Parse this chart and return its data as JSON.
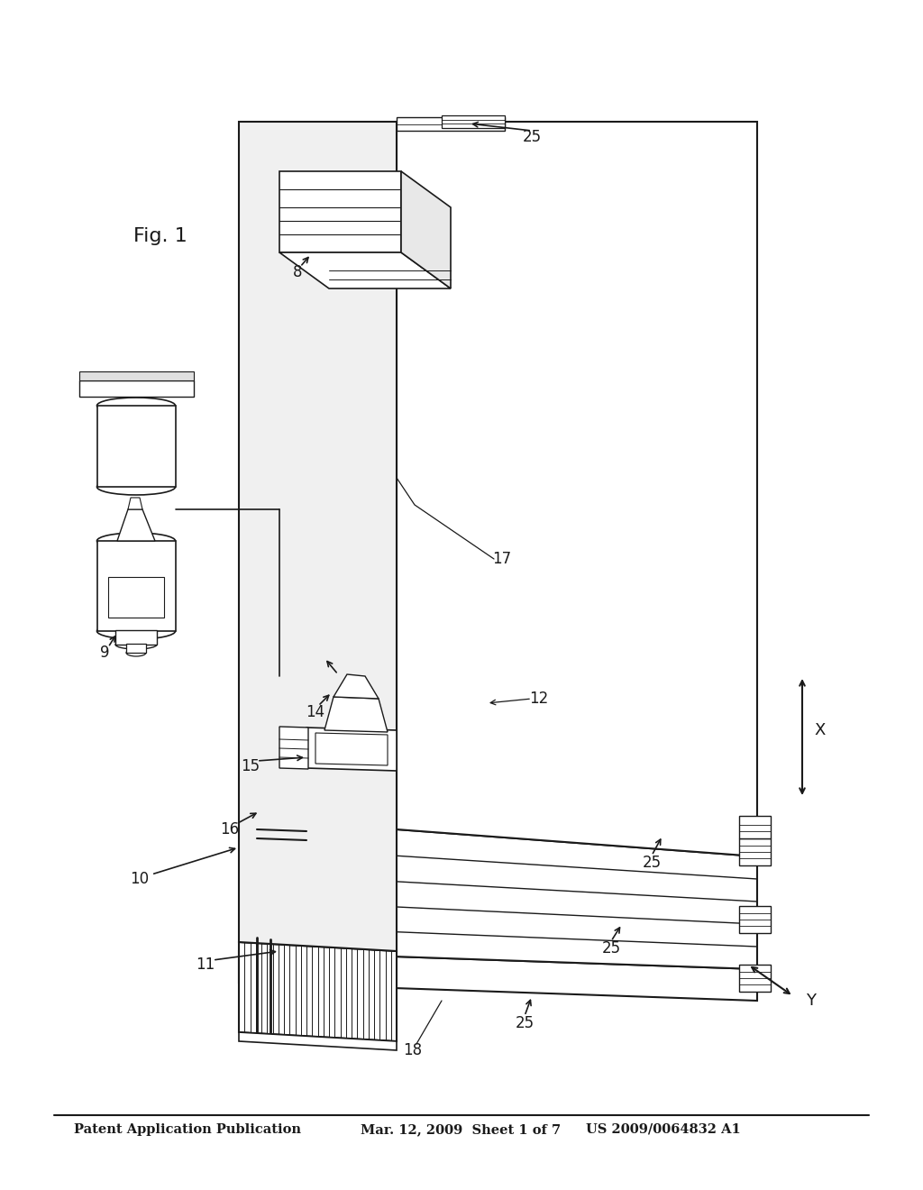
{
  "title_left": "Patent Application Publication",
  "title_mid": "Mar. 12, 2009  Sheet 1 of 7",
  "title_right": "US 2009/0064832 A1",
  "fig_label": "Fig. 1",
  "bg_color": "#ffffff",
  "line_color": "#1a1a1a",
  "header_fontsize": 10.5,
  "label_fontsize": 12,
  "figlabel_fontsize": 16
}
